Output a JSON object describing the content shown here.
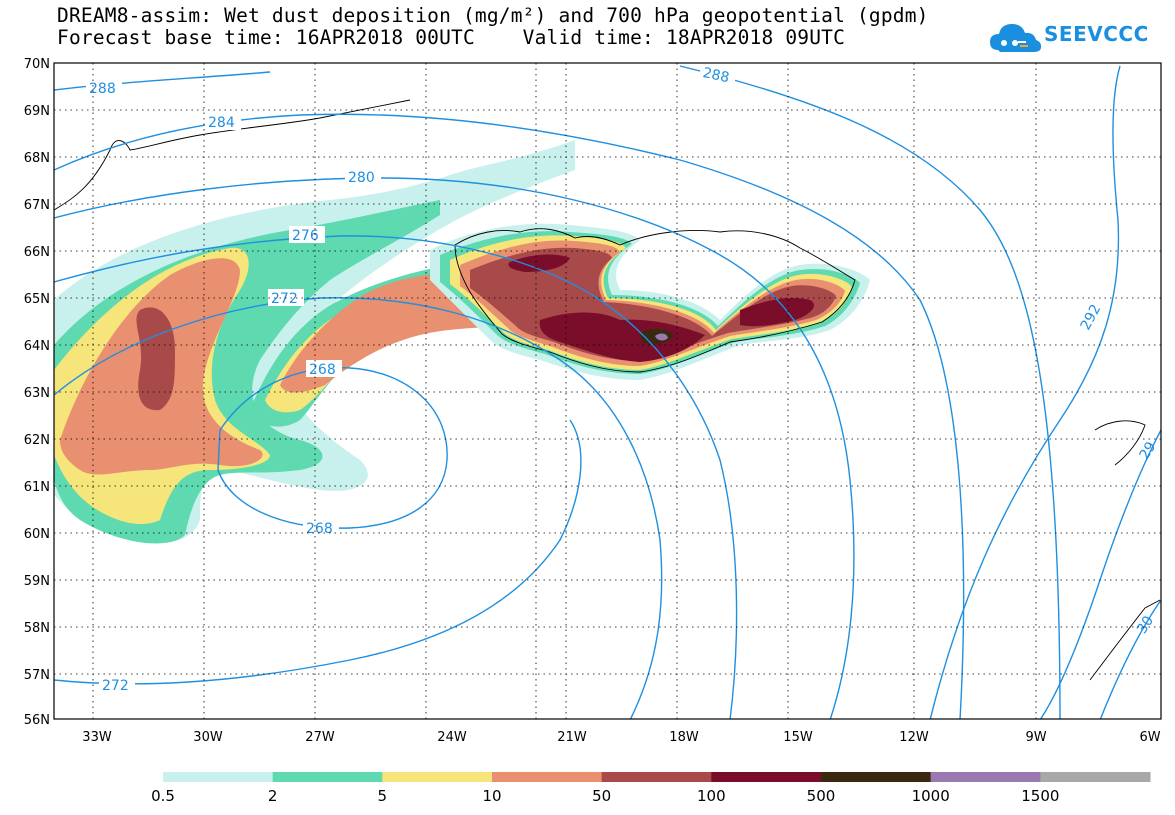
{
  "title_line1": "DREAM8-assim: Wet dust deposition (mg/m²) and 700 hPa geopotential (gpdm)",
  "title_line2": "Forecast base time: 16APR2018 00UTC    Valid time: 18APR2018 09UTC",
  "logo_text": "SEEVCCC",
  "logo_icon": "cloud-icon",
  "latitude_labels": [
    "70N",
    "69N",
    "68N",
    "67N",
    "66N",
    "65N",
    "64N",
    "63N",
    "62N",
    "61N",
    "60N",
    "59N",
    "58N",
    "57N",
    "56N"
  ],
  "longitude_labels": [
    "33W",
    "30W",
    "27W",
    "24W",
    "21W",
    "18W",
    "15W",
    "12W",
    "9W",
    "6W"
  ],
  "contour_labels": [
    "288",
    "284",
    "280",
    "276",
    "272",
    "268",
    "268",
    "272",
    "288",
    "292",
    "29",
    "30"
  ],
  "colorbar": {
    "labels": [
      "0.5",
      "2",
      "5",
      "10",
      "50",
      "100",
      "500",
      "1000",
      "1500"
    ],
    "colors": [
      "#c8f0ec",
      "#5fd9b0",
      "#f5e57a",
      "#e89070",
      "#a84a4a",
      "#7a0e2a",
      "#3a2810",
      "#9a78b0",
      "#a8a8a8"
    ]
  },
  "colors": {
    "contour": "#1f8fe0",
    "coast": "#000000",
    "logo": "#1a8fe0"
  }
}
